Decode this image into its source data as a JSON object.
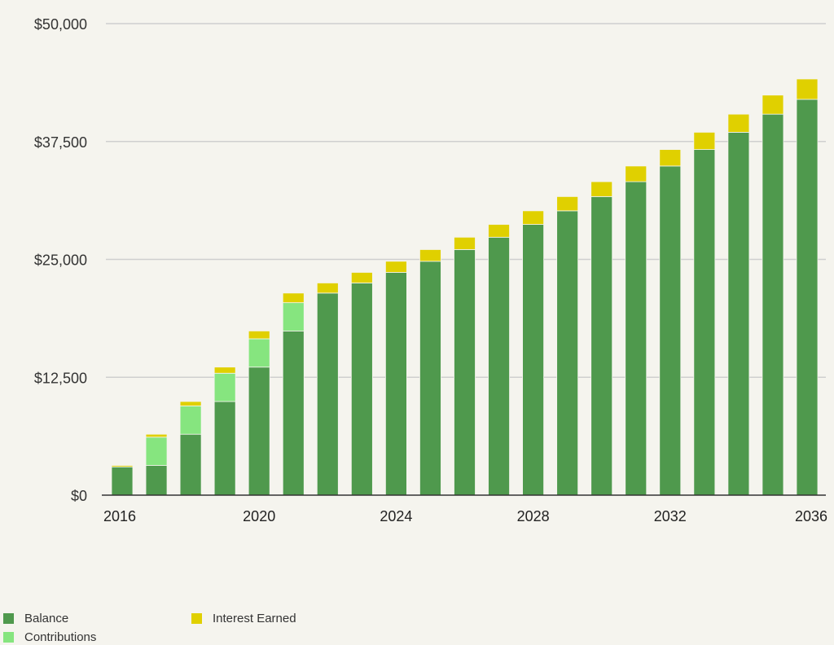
{
  "chart_data": {
    "type": "bar",
    "stacked": true,
    "title": "",
    "xlabel": "",
    "ylabel": "",
    "ylim": [
      0,
      50000
    ],
    "yticks": [
      0,
      12500,
      25000,
      37500,
      50000
    ],
    "ytick_labels": [
      "$0",
      "$12,500",
      "$25,000",
      "$37,500",
      "$50,000"
    ],
    "xtick_labels": [
      "2016",
      "2020",
      "2024",
      "2028",
      "2032",
      "2036"
    ],
    "grid": true,
    "legend_position": "bottom-left",
    "categories": [
      "2016",
      "2017",
      "2018",
      "2019",
      "2020",
      "2021",
      "2022",
      "2023",
      "2024",
      "2025",
      "2026",
      "2027",
      "2028",
      "2029",
      "2030",
      "2031",
      "2032",
      "2033",
      "2034",
      "2035",
      "2036"
    ],
    "series": [
      {
        "name": "Balance",
        "color": "#4f994d",
        "values": [
          3000,
          3150,
          6460,
          9930,
          13580,
          17410,
          21430,
          22500,
          23620,
          24800,
          26040,
          27350,
          28710,
          30150,
          31660,
          33240,
          34900,
          36650,
          38480,
          40400,
          41970
        ]
      },
      {
        "name": "Contributions",
        "color": "#86e57f",
        "values": [
          0,
          3000,
          3000,
          3000,
          3000,
          3000,
          0,
          0,
          0,
          0,
          0,
          0,
          0,
          0,
          0,
          0,
          0,
          0,
          0,
          0,
          0
        ]
      },
      {
        "name": "Interest Earned",
        "color": "#e0d000",
        "values": [
          150,
          310,
          470,
          650,
          830,
          1020,
          1070,
          1120,
          1180,
          1240,
          1310,
          1360,
          1440,
          1510,
          1580,
          1660,
          1750,
          1830,
          1920,
          2020,
          2160
        ]
      }
    ]
  },
  "legend": [
    {
      "label": "Balance",
      "color": "#4f994d"
    },
    {
      "label": "Contributions",
      "color": "#86e57f"
    },
    {
      "label": "Interest Earned",
      "color": "#e0d000"
    }
  ]
}
